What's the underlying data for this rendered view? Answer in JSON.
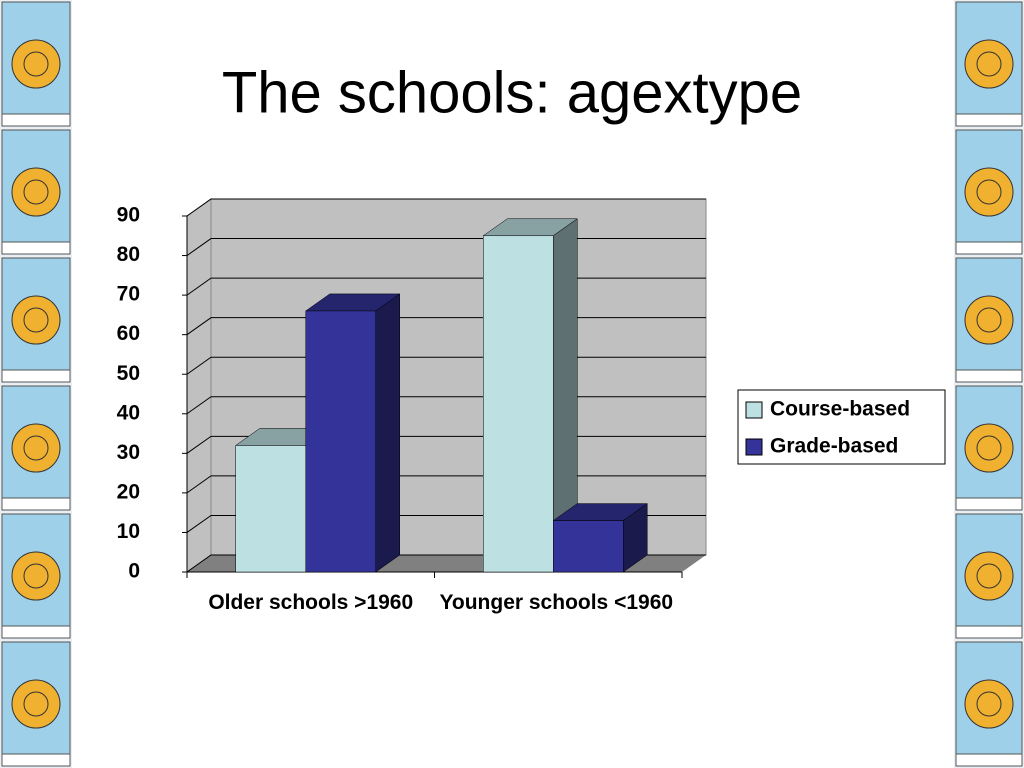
{
  "chart_data": {
    "type": "bar3d",
    "title": "The schools: agextype",
    "categories": [
      "Older schools >1960",
      "Younger schools <1960"
    ],
    "series": [
      {
        "name": "Course-based",
        "color": "#bde0e3",
        "values": [
          32,
          85
        ]
      },
      {
        "name": "Grade-based",
        "color": "#333399",
        "values": [
          66,
          13
        ]
      }
    ],
    "ylim": [
      0,
      90
    ],
    "yticks": [
      0,
      10,
      20,
      30,
      40,
      50,
      60,
      70,
      80,
      90
    ],
    "grid": true,
    "legend": "right"
  }
}
